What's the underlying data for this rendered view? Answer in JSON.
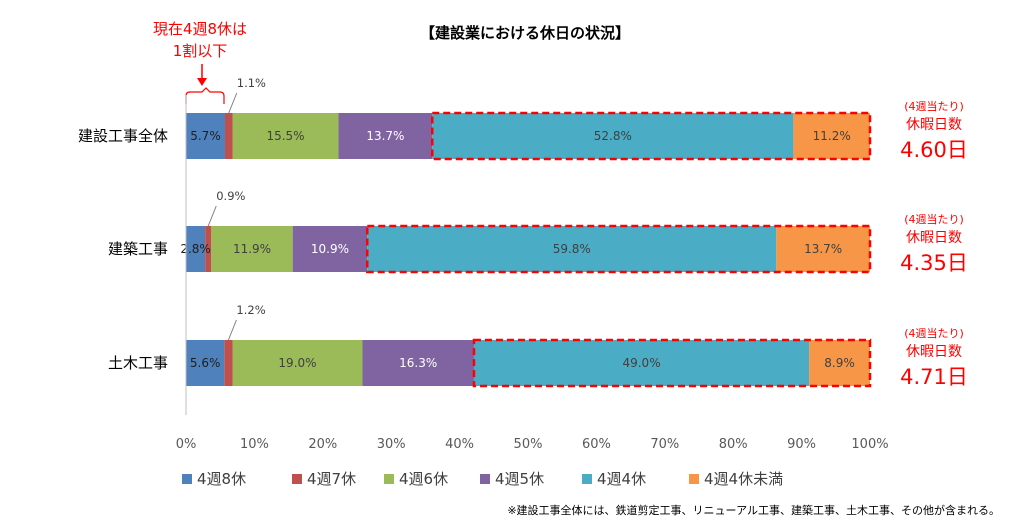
{
  "colors": {
    "4週8休": "#4f81bd",
    "4週7休": "#c0504d",
    "4週6休": "#9bbb59",
    "4週5休": "#8064a2",
    "4週4休": "#4bacc6",
    "4週4休未満": "#f79646",
    "highlight": "#ff0000"
  },
  "annotation": {
    "line1": "現在4週8休は",
    "line2": "1割以下"
  },
  "footnote": "※建設工事全体には、鉄道剪定工事、リニューアル工事、建築工事、土木工事、その他が含まれる。",
  "chart_data": {
    "type": "bar",
    "orientation": "horizontal",
    "stacked": true,
    "title": "【建設業における休日の状況】",
    "categories": [
      "建設工事全体",
      "建築工事",
      "土木工事"
    ],
    "series": [
      {
        "name": "4週8休",
        "values": [
          5.7,
          2.8,
          5.6
        ]
      },
      {
        "name": "4週7休",
        "values": [
          1.1,
          0.9,
          1.2
        ]
      },
      {
        "name": "4週6休",
        "values": [
          15.5,
          11.9,
          19.0
        ]
      },
      {
        "name": "4週5休",
        "values": [
          13.7,
          10.9,
          16.3
        ]
      },
      {
        "name": "4週4休",
        "values": [
          52.8,
          59.8,
          49.0
        ]
      },
      {
        "name": "4週4休未満",
        "values": [
          11.2,
          13.7,
          8.9
        ]
      }
    ],
    "value_labels": [
      [
        "5.7%",
        "1.1%",
        "15.5%",
        "13.7%",
        "52.8%",
        "11.2%"
      ],
      [
        "2.8%",
        "0.9%",
        "11.9%",
        "10.9%",
        "59.8%",
        "13.7%"
      ],
      [
        "5.6%",
        "1.2%",
        "19.0%",
        "16.3%",
        "49.0%",
        "8.9%"
      ]
    ],
    "xlim": [
      0,
      100
    ],
    "x_ticks": [
      "0%",
      "10%",
      "20%",
      "30%",
      "40%",
      "50%",
      "60%",
      "70%",
      "80%",
      "90%",
      "100%"
    ],
    "legend": {
      "position": "bottom"
    },
    "grid": false,
    "side_annotations": [
      {
        "line1": "(4週当たり)",
        "line2": "休暇日数",
        "value": "4.60日"
      },
      {
        "line1": "(4週当たり)",
        "line2": "休暇日数",
        "value": "4.35日"
      },
      {
        "line1": "(4週当たり)",
        "line2": "休暇日数",
        "value": "4.71日"
      }
    ]
  }
}
